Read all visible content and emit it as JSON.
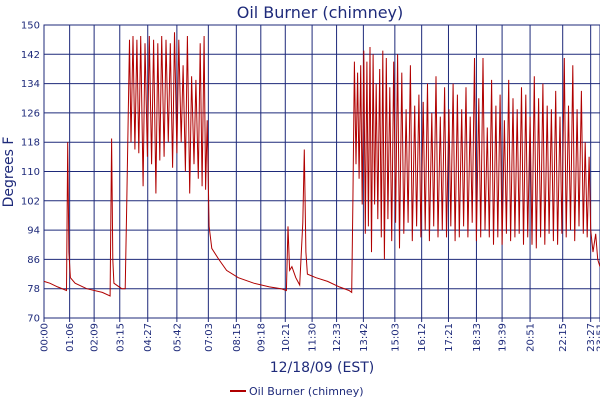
{
  "chart_data": {
    "type": "line",
    "title": "Oil Burner (chimney)",
    "xlabel": "12/18/09 (EST)",
    "ylabel": "Degrees F",
    "ylim": [
      70,
      150
    ],
    "yticks": [
      70,
      78,
      86,
      94,
      102,
      110,
      118,
      126,
      134,
      142,
      150
    ],
    "xlim": [
      "00:00",
      "23:51"
    ],
    "xticks": [
      "00:00",
      "01:06",
      "02:09",
      "03:15",
      "04:27",
      "05:42",
      "07:03",
      "08:15",
      "09:18",
      "10:21",
      "11:30",
      "12:33",
      "13:42",
      "15:03",
      "16:12",
      "17:21",
      "18:33",
      "19:39",
      "20:51",
      "22:15",
      "23:27",
      "23:51"
    ],
    "grid": true,
    "legend_position": "bottom",
    "colors": {
      "series": "#b00000",
      "axis": "#1e2a7a"
    },
    "series": [
      {
        "name": "Oil Burner (chimney)",
        "points": [
          [
            "00:00",
            80
          ],
          [
            "00:15",
            79.5
          ],
          [
            "00:35",
            78.5
          ],
          [
            "00:58",
            77.5
          ],
          [
            "01:01",
            118
          ],
          [
            "01:04",
            88
          ],
          [
            "01:08",
            81
          ],
          [
            "01:20",
            79.5
          ],
          [
            "01:50",
            78
          ],
          [
            "02:30",
            77
          ],
          [
            "02:50",
            76
          ],
          [
            "02:54",
            119
          ],
          [
            "02:57",
            86
          ],
          [
            "03:00",
            79.5
          ],
          [
            "03:20",
            78
          ],
          [
            "03:29",
            78
          ],
          [
            "03:33",
            102
          ],
          [
            "03:40",
            146
          ],
          [
            "03:44",
            118
          ],
          [
            "03:49",
            147
          ],
          [
            "03:54",
            116
          ],
          [
            "03:59",
            146
          ],
          [
            "04:04",
            115
          ],
          [
            "04:09",
            147
          ],
          [
            "04:15",
            106
          ],
          [
            "04:20",
            145
          ],
          [
            "04:26",
            114
          ],
          [
            "04:31",
            147
          ],
          [
            "04:37",
            112
          ],
          [
            "04:42",
            146
          ],
          [
            "04:48",
            104
          ],
          [
            "04:53",
            145
          ],
          [
            "04:58",
            113
          ],
          [
            "05:03",
            147
          ],
          [
            "05:09",
            114
          ],
          [
            "05:14",
            146
          ],
          [
            "05:20",
            118
          ],
          [
            "05:25",
            145
          ],
          [
            "05:31",
            111
          ],
          [
            "05:36",
            148
          ],
          [
            "05:42",
            115
          ],
          [
            "05:47",
            146
          ],
          [
            "05:53",
            118
          ],
          [
            "05:58",
            139
          ],
          [
            "06:04",
            110
          ],
          [
            "06:09",
            147
          ],
          [
            "06:15",
            104
          ],
          [
            "06:20",
            136
          ],
          [
            "06:26",
            112
          ],
          [
            "06:31",
            135
          ],
          [
            "06:37",
            108
          ],
          [
            "06:42",
            145
          ],
          [
            "06:47",
            106
          ],
          [
            "06:52",
            147
          ],
          [
            "06:56",
            105
          ],
          [
            "07:00",
            124
          ],
          [
            "07:05",
            95
          ],
          [
            "07:12",
            89
          ],
          [
            "07:30",
            86
          ],
          [
            "07:50",
            83
          ],
          [
            "08:20",
            81
          ],
          [
            "09:00",
            79.5
          ],
          [
            "09:40",
            78.5
          ],
          [
            "10:10",
            78
          ],
          [
            "10:24",
            77.5
          ],
          [
            "10:28",
            95
          ],
          [
            "10:32",
            83
          ],
          [
            "10:38",
            84
          ],
          [
            "10:48",
            81
          ],
          [
            "10:58",
            79
          ],
          [
            "11:06",
            96
          ],
          [
            "11:10",
            116
          ],
          [
            "11:14",
            88
          ],
          [
            "11:18",
            82
          ],
          [
            "11:40",
            81
          ],
          [
            "12:10",
            80
          ],
          [
            "12:40",
            78.5
          ],
          [
            "13:05",
            77.5
          ],
          [
            "13:12",
            77
          ],
          [
            "13:15",
            102
          ],
          [
            "13:19",
            140
          ],
          [
            "13:23",
            112
          ],
          [
            "13:27",
            137
          ],
          [
            "13:31",
            108
          ],
          [
            "13:35",
            139
          ],
          [
            "13:39",
            101
          ],
          [
            "13:43",
            143
          ],
          [
            "13:47",
            93
          ],
          [
            "13:51",
            140
          ],
          [
            "13:55",
            95
          ],
          [
            "13:59",
            144
          ],
          [
            "14:03",
            88
          ],
          [
            "14:07",
            142
          ],
          [
            "14:11",
            101
          ],
          [
            "14:15",
            134
          ],
          [
            "14:19",
            97
          ],
          [
            "14:24",
            138
          ],
          [
            "14:28",
            92
          ],
          [
            "14:32",
            143
          ],
          [
            "14:36",
            86
          ],
          [
            "14:41",
            141
          ],
          [
            "14:45",
            97
          ],
          [
            "14:50",
            133
          ],
          [
            "14:55",
            91
          ],
          [
            "15:00",
            140
          ],
          [
            "15:05",
            96
          ],
          [
            "15:10",
            142
          ],
          [
            "15:15",
            89
          ],
          [
            "15:21",
            137
          ],
          [
            "15:26",
            93
          ],
          [
            "15:32",
            127
          ],
          [
            "15:37",
            96
          ],
          [
            "15:43",
            139
          ],
          [
            "15:48",
            91
          ],
          [
            "15:54",
            128
          ],
          [
            "15:59",
            95
          ],
          [
            "16:05",
            131
          ],
          [
            "16:10",
            92
          ],
          [
            "16:16",
            129
          ],
          [
            "16:21",
            94
          ],
          [
            "16:27",
            134
          ],
          [
            "16:32",
            91
          ],
          [
            "16:38",
            126
          ],
          [
            "16:43",
            95
          ],
          [
            "16:49",
            136
          ],
          [
            "16:54",
            92
          ],
          [
            "17:00",
            125
          ],
          [
            "17:05",
            94
          ],
          [
            "17:11",
            133
          ],
          [
            "17:16",
            92
          ],
          [
            "17:22",
            127
          ],
          [
            "17:27",
            95
          ],
          [
            "17:33",
            134
          ],
          [
            "17:38",
            91
          ],
          [
            "17:44",
            131
          ],
          [
            "17:49",
            92
          ],
          [
            "17:55",
            127
          ],
          [
            "18:00",
            95
          ],
          [
            "18:06",
            133
          ],
          [
            "18:11",
            92
          ],
          [
            "18:17",
            125
          ],
          [
            "18:22",
            96
          ],
          [
            "18:28",
            141
          ],
          [
            "18:33",
            91
          ],
          [
            "18:39",
            130
          ],
          [
            "18:44",
            92
          ],
          [
            "18:50",
            141
          ],
          [
            "18:55",
            94
          ],
          [
            "19:01",
            122
          ],
          [
            "19:06",
            92
          ],
          [
            "19:12",
            135
          ],
          [
            "19:17",
            90
          ],
          [
            "19:23",
            128
          ],
          [
            "19:28",
            92
          ],
          [
            "19:34",
            131
          ],
          [
            "19:39",
            90
          ],
          [
            "19:45",
            124
          ],
          [
            "19:50",
            93
          ],
          [
            "19:56",
            135
          ],
          [
            "20:01",
            91
          ],
          [
            "20:07",
            130
          ],
          [
            "20:12",
            92
          ],
          [
            "20:18",
            127
          ],
          [
            "20:23",
            93
          ],
          [
            "20:29",
            133
          ],
          [
            "20:34",
            90
          ],
          [
            "20:40",
            131
          ],
          [
            "20:45",
            92
          ],
          [
            "20:51",
            125
          ],
          [
            "20:56",
            90
          ],
          [
            "21:02",
            136
          ],
          [
            "21:07",
            89
          ],
          [
            "21:13",
            130
          ],
          [
            "21:18",
            92
          ],
          [
            "21:24",
            134
          ],
          [
            "21:29",
            90
          ],
          [
            "21:35",
            128
          ],
          [
            "21:40",
            93
          ],
          [
            "21:46",
            127
          ],
          [
            "21:51",
            91
          ],
          [
            "21:57",
            132
          ],
          [
            "22:02",
            90
          ],
          [
            "22:08",
            125
          ],
          [
            "22:13",
            93
          ],
          [
            "22:19",
            141
          ],
          [
            "22:24",
            92
          ],
          [
            "22:30",
            128
          ],
          [
            "22:35",
            94
          ],
          [
            "22:41",
            139
          ],
          [
            "22:46",
            91
          ],
          [
            "22:52",
            127
          ],
          [
            "22:57",
            95
          ],
          [
            "23:03",
            132
          ],
          [
            "23:08",
            93
          ],
          [
            "23:13",
            118
          ],
          [
            "23:18",
            92
          ],
          [
            "23:23",
            114
          ],
          [
            "23:27",
            94
          ],
          [
            "23:33",
            88
          ],
          [
            "23:40",
            93
          ],
          [
            "23:45",
            86
          ],
          [
            "23:51",
            84
          ]
        ]
      }
    ]
  }
}
